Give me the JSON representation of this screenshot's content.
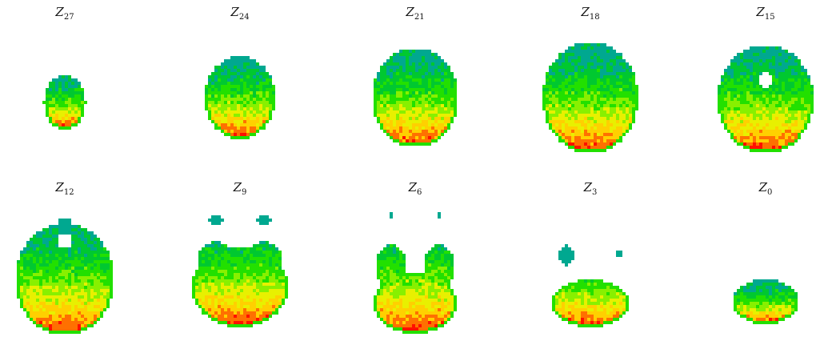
{
  "figure": {
    "colormap": [
      "#00a890",
      "#00c830",
      "#22e000",
      "#88f000",
      "#e8f000",
      "#ffd000",
      "#ff7000",
      "#ff1000"
    ],
    "panels": [
      {
        "symbol": "Z",
        "index": "27",
        "shape": "small"
      },
      {
        "symbol": "Z",
        "index": "24",
        "shape": "oval"
      },
      {
        "symbol": "Z",
        "index": "21",
        "shape": "oval-large"
      },
      {
        "symbol": "Z",
        "index": "18",
        "shape": "oval-largest"
      },
      {
        "symbol": "Z",
        "index": "15",
        "shape": "oval-ventricles"
      },
      {
        "symbol": "Z",
        "index": "12",
        "shape": "temporal"
      },
      {
        "symbol": "Z",
        "index": "9",
        "shape": "cerebellum-temporal"
      },
      {
        "symbol": "Z",
        "index": "6",
        "shape": "cerebellum-lobes"
      },
      {
        "symbol": "Z",
        "index": "3",
        "shape": "cerebellum-small"
      },
      {
        "symbol": "Z",
        "index": "0",
        "shape": "cerebellum-base"
      }
    ]
  }
}
